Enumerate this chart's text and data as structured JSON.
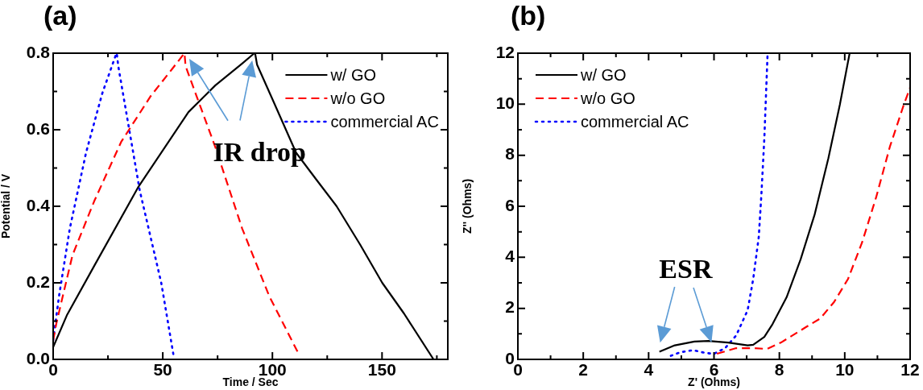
{
  "chart_data": [
    {
      "type": "line",
      "title": "(a)",
      "xlabel": "Time / Sec",
      "ylabel": "Potential / V",
      "xlim": [
        0,
        180
      ],
      "xticks": [
        0,
        {
          "value": 25,
          "label": null
        },
        50,
        {
          "value": 75,
          "label": null
        },
        100,
        {
          "value": 125,
          "label": null
        },
        150,
        {
          "value": 175,
          "label": null
        }
      ],
      "ylim": [
        0,
        0.8
      ],
      "yticks": [
        {
          "value": 0,
          "label": "0.0"
        },
        {
          "value": 0.1,
          "label": null
        },
        0.2,
        {
          "value": 0.3,
          "label": null
        },
        0.4,
        {
          "value": 0.5,
          "label": null
        },
        0.6,
        {
          "value": 0.7,
          "label": null
        },
        0.8
      ],
      "grid": false,
      "legend": "top right",
      "marker": "none",
      "annotations": [
        "IR drop"
      ],
      "series": [
        {
          "name": "w/ GO",
          "color": "#000000",
          "line_style": "solid",
          "x": [
            0,
            6.4,
            18.7,
            39,
            61.7,
            74,
            86.2,
            91.8,
            92.1,
            93,
            100,
            110.8,
            120,
            129.3,
            140,
            150.1,
            160,
            173.5
          ],
          "values": [
            0.032,
            0.117,
            0.244,
            0.452,
            0.646,
            0.716,
            0.773,
            0.8,
            0.8,
            0.77,
            0.68,
            0.54,
            0.47,
            0.4,
            0.3,
            0.2,
            0.12,
            0
          ]
        },
        {
          "name": "w/o GO",
          "color": "#ff0000",
          "line_style": "dashed",
          "x": [
            0,
            1.5,
            8.8,
            18.7,
            31,
            44.5,
            54.3,
            59.9,
            60.4,
            74,
            86.2,
            98.5,
            112
          ],
          "values": [
            0.05,
            0.095,
            0.272,
            0.413,
            0.568,
            0.688,
            0.759,
            0.8,
            0.766,
            0.554,
            0.342,
            0.166,
            0.014
          ]
        },
        {
          "name": "commercial AC",
          "color": "#0000ff",
          "line_style": "dotted",
          "x": [
            0,
            2.7,
            7.6,
            15,
            22.4,
            28.5,
            29,
            29.7,
            39.5,
            49.3,
            54.8
          ],
          "values": [
            0.05,
            0.166,
            0.342,
            0.54,
            0.695,
            0.794,
            0.8,
            0.766,
            0.441,
            0.2,
            0.014
          ]
        }
      ]
    },
    {
      "type": "line",
      "title": "(b)",
      "xlabel": "Z' (Ohms)",
      "ylabel": "Z'' (Ohms)",
      "xlim": [
        0,
        12
      ],
      "xticks": [
        0,
        {
          "value": 1,
          "label": null
        },
        2,
        {
          "value": 3,
          "label": null
        },
        4,
        {
          "value": 5,
          "label": null
        },
        6,
        {
          "value": 7,
          "label": null
        },
        8,
        {
          "value": 9,
          "label": null
        },
        10,
        {
          "value": 11,
          "label": null
        },
        12
      ],
      "ylim": [
        0,
        12
      ],
      "yticks": [
        0,
        {
          "value": 1,
          "label": null
        },
        2,
        {
          "value": 3,
          "label": null
        },
        4,
        {
          "value": 5,
          "label": null
        },
        6,
        {
          "value": 7,
          "label": null
        },
        8,
        {
          "value": 9,
          "label": null
        },
        10,
        {
          "value": 11,
          "label": null
        },
        12
      ],
      "grid": false,
      "legend": "top left",
      "marker": "none",
      "annotations": [
        "ESR"
      ],
      "series": [
        {
          "name": "w/ GO",
          "color": "#000000",
          "line_style": "solid",
          "x": [
            4.33,
            4.8,
            5.4,
            5.83,
            6.43,
            7.03,
            7.2,
            7.54,
            7.79,
            8.22,
            8.65,
            9.08,
            9.5,
            9.85,
            10.15
          ],
          "values": [
            0.3,
            0.55,
            0.7,
            0.72,
            0.66,
            0.55,
            0.57,
            0.88,
            1.38,
            2.43,
            3.92,
            5.68,
            7.89,
            9.98,
            12
          ]
        },
        {
          "name": "w/o GO",
          "color": "#ff0000",
          "line_style": "dashed",
          "x": [
            6.09,
            6.68,
            7.2,
            7.62,
            8.05,
            8.82,
            9.25,
            9.68,
            10.1,
            10.53,
            10.96,
            11.38,
            11.81,
            12
          ],
          "values": [
            0.22,
            0.44,
            0.44,
            0.41,
            0.66,
            1.27,
            1.6,
            2.26,
            3.15,
            4.58,
            6.35,
            8.33,
            9.99,
            10.65
          ]
        },
        {
          "name": "commercial AC",
          "color": "#0000ff",
          "line_style": "dotted",
          "x": [
            4.68,
            4.97,
            5.36,
            5.74,
            6,
            6.34,
            6.68,
            7.03,
            7.2,
            7.37,
            7.45,
            7.54,
            7.64
          ],
          "values": [
            0.14,
            0.28,
            0.36,
            0.25,
            0.22,
            0.44,
            0.94,
            1.93,
            3.15,
            4.8,
            6.46,
            8.66,
            12
          ]
        }
      ]
    }
  ]
}
